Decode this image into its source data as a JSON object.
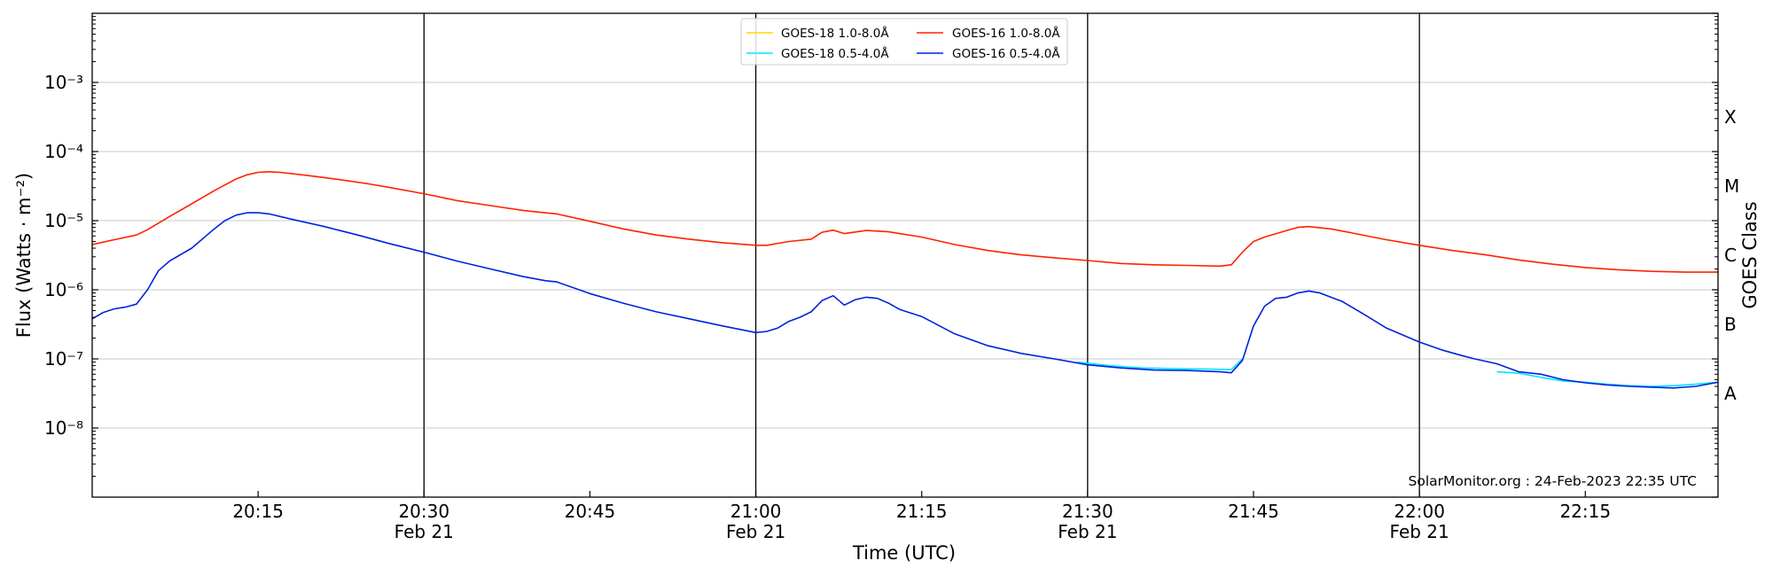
{
  "chart_data": {
    "type": "line",
    "ylabel": "Flux (Watts · m⁻²)",
    "xlabel": "Time (UTC)",
    "right_axis_label": "GOES Class",
    "y_scale": "log",
    "ylim": [
      1e-09,
      0.01
    ],
    "y_ticks": [
      {
        "value": 1e-08,
        "label": "10⁻⁸"
      },
      {
        "value": 1e-07,
        "label": "10⁻⁷"
      },
      {
        "value": 1e-06,
        "label": "10⁻⁶"
      },
      {
        "value": 1e-05,
        "label": "10⁻⁵"
      },
      {
        "value": 0.0001,
        "label": "10⁻⁴"
      },
      {
        "value": 0.001,
        "label": "10⁻³"
      }
    ],
    "xlim": [
      "20:00",
      "22:27"
    ],
    "x_ticks": [
      {
        "time": "20:15",
        "label": "20:15",
        "sublabel": ""
      },
      {
        "time": "20:30",
        "label": "20:30",
        "sublabel": "Feb 21"
      },
      {
        "time": "20:45",
        "label": "20:45",
        "sublabel": ""
      },
      {
        "time": "21:00",
        "label": "21:00",
        "sublabel": "Feb 21"
      },
      {
        "time": "21:15",
        "label": "21:15",
        "sublabel": ""
      },
      {
        "time": "21:30",
        "label": "21:30",
        "sublabel": "Feb 21"
      },
      {
        "time": "21:45",
        "label": "21:45",
        "sublabel": ""
      },
      {
        "time": "22:00",
        "label": "22:00",
        "sublabel": "Feb 21"
      },
      {
        "time": "22:15",
        "label": "22:15",
        "sublabel": ""
      }
    ],
    "vertical_lines": [
      "20:30",
      "21:00",
      "21:30",
      "22:00"
    ],
    "goes_classes": [
      {
        "label": "A",
        "value": 3.16e-08
      },
      {
        "label": "B",
        "value": 3.16e-07
      },
      {
        "label": "C",
        "value": 3.16e-06
      },
      {
        "label": "M",
        "value": 3.16e-05
      },
      {
        "label": "X",
        "value": 0.000316
      }
    ],
    "grid": "horizontal",
    "legend_position": "top-center",
    "credit": "SolarMonitor.org : 24-Feb-2023 22:35 UTC",
    "series": [
      {
        "name": "GOES-18 1.0-8.0Å",
        "color": "#ffd700",
        "x": [],
        "y": []
      },
      {
        "name": "GOES-18 0.5-4.0Å",
        "color": "#00e5ff",
        "x": [
          "21:29",
          "21:32",
          "21:35",
          "21:38",
          "21:41",
          "21:43",
          "21:44"
        ],
        "y": [
          9e-08,
          8e-08,
          7.4e-08,
          7.2e-08,
          7.1e-08,
          7e-08,
          1e-07
        ],
        "x2": [
          "22:07",
          "22:09",
          "22:11",
          "22:13",
          "22:15",
          "22:17",
          "22:19",
          "22:21",
          "22:23",
          "22:25",
          "22:27"
        ],
        "y2": [
          6.5e-08,
          6.2e-08,
          5.4e-08,
          4.8e-08,
          4.6e-08,
          4.3e-08,
          4.1e-08,
          4e-08,
          4.1e-08,
          4.3e-08,
          4.6e-08
        ]
      },
      {
        "name": "GOES-16 1.0-8.0Å",
        "color": "#ff2200",
        "x": [
          "20:00",
          "20:02",
          "20:04",
          "20:05",
          "20:07",
          "20:09",
          "20:11",
          "20:13",
          "20:14",
          "20:15",
          "20:16",
          "20:17",
          "20:19",
          "20:21",
          "20:23",
          "20:25",
          "20:27",
          "20:30",
          "20:33",
          "20:36",
          "20:39",
          "20:42",
          "20:45",
          "20:48",
          "20:51",
          "20:54",
          "20:57",
          "21:00",
          "21:01",
          "21:03",
          "21:05",
          "21:06",
          "21:07",
          "21:08",
          "21:10",
          "21:12",
          "21:15",
          "21:18",
          "21:21",
          "21:24",
          "21:27",
          "21:30",
          "21:33",
          "21:36",
          "21:39",
          "21:42",
          "21:43",
          "21:44",
          "21:45",
          "21:46",
          "21:48",
          "21:49",
          "21:50",
          "21:52",
          "21:54",
          "21:57",
          "22:00",
          "22:03",
          "22:06",
          "22:09",
          "22:12",
          "22:15",
          "22:18",
          "22:21",
          "22:24",
          "22:27"
        ],
        "y": [
          4.5e-06,
          5.3e-06,
          6.2e-06,
          7.4e-06,
          1.15e-05,
          1.75e-05,
          2.7e-05,
          4e-05,
          4.6e-05,
          5e-05,
          5.1e-05,
          5e-05,
          4.6e-05,
          4.2e-05,
          3.8e-05,
          3.4e-05,
          3e-05,
          2.45e-05,
          1.95e-05,
          1.65e-05,
          1.4e-05,
          1.25e-05,
          9.8e-06,
          7.6e-06,
          6.2e-06,
          5.4e-06,
          4.8e-06,
          4.4e-06,
          4.4e-06,
          5e-06,
          5.4e-06,
          6.8e-06,
          7.3e-06,
          6.5e-06,
          7.2e-06,
          6.9e-06,
          5.8e-06,
          4.5e-06,
          3.7e-06,
          3.2e-06,
          2.9e-06,
          2.65e-06,
          2.4e-06,
          2.3e-06,
          2.25e-06,
          2.2e-06,
          2.3e-06,
          3.5e-06,
          5e-06,
          5.8e-06,
          7.2e-06,
          8e-06,
          8.2e-06,
          7.6e-06,
          6.6e-06,
          5.3e-06,
          4.4e-06,
          3.7e-06,
          3.2e-06,
          2.7e-06,
          2.35e-06,
          2.1e-06,
          1.95e-06,
          1.85e-06,
          1.8e-06,
          1.8e-06
        ]
      },
      {
        "name": "GOES-16 0.5-4.0Å",
        "color": "#0022dd",
        "x": [
          "20:00",
          "20:01",
          "20:02",
          "20:03",
          "20:04",
          "20:05",
          "20:06",
          "20:07",
          "20:09",
          "20:11",
          "20:12",
          "20:13",
          "20:14",
          "20:15",
          "20:16",
          "20:18",
          "20:21",
          "20:24",
          "20:27",
          "20:30",
          "20:33",
          "20:36",
          "20:39",
          "20:41",
          "20:42",
          "20:45",
          "20:48",
          "20:51",
          "20:54",
          "20:57",
          "21:00",
          "21:01",
          "21:02",
          "21:03",
          "21:04",
          "21:05",
          "21:06",
          "21:07",
          "21:08",
          "21:09",
          "21:10",
          "21:11",
          "21:12",
          "21:13",
          "21:15",
          "21:18",
          "21:21",
          "21:24",
          "21:27",
          "21:30",
          "21:33",
          "21:36",
          "21:39",
          "21:42",
          "21:43",
          "21:44",
          "21:45",
          "21:46",
          "21:47",
          "21:48",
          "21:49",
          "21:50",
          "21:51",
          "21:53",
          "21:55",
          "21:57",
          "22:00",
          "22:02",
          "22:04",
          "22:05",
          "22:07",
          "22:09",
          "22:11",
          "22:13",
          "22:15",
          "22:17",
          "22:19",
          "22:21",
          "22:23",
          "22:25",
          "22:27"
        ],
        "y": [
          3.8e-07,
          4.7e-07,
          5.3e-07,
          5.6e-07,
          6.2e-07,
          1e-06,
          1.9e-06,
          2.6e-06,
          4e-06,
          7.5e-06,
          1e-05,
          1.2e-05,
          1.3e-05,
          1.3e-05,
          1.25e-05,
          1.05e-05,
          8.2e-06,
          6.2e-06,
          4.6e-06,
          3.5e-06,
          2.6e-06,
          2e-06,
          1.55e-06,
          1.35e-06,
          1.3e-06,
          8.8e-07,
          6.4e-07,
          4.8e-07,
          3.8e-07,
          3e-07,
          2.4e-07,
          2.5e-07,
          2.8e-07,
          3.5e-07,
          4e-07,
          4.8e-07,
          7e-07,
          8.2e-07,
          6e-07,
          7.2e-07,
          7.8e-07,
          7.5e-07,
          6.4e-07,
          5.2e-07,
          4.1e-07,
          2.3e-07,
          1.55e-07,
          1.2e-07,
          1e-07,
          8.2e-08,
          7.4e-08,
          6.9e-08,
          6.8e-08,
          6.5e-08,
          6.3e-08,
          9.5e-08,
          3e-07,
          5.8e-07,
          7.5e-07,
          7.8e-07,
          9e-07,
          9.6e-07,
          9e-07,
          6.8e-07,
          4.4e-07,
          2.8e-07,
          1.75e-07,
          1.35e-07,
          1.1e-07,
          1e-07,
          8.5e-08,
          6.5e-08,
          6e-08,
          5e-08,
          4.5e-08,
          4.2e-08,
          4e-08,
          3.9e-08,
          3.8e-08,
          4e-08,
          4.6e-08
        ]
      }
    ]
  }
}
